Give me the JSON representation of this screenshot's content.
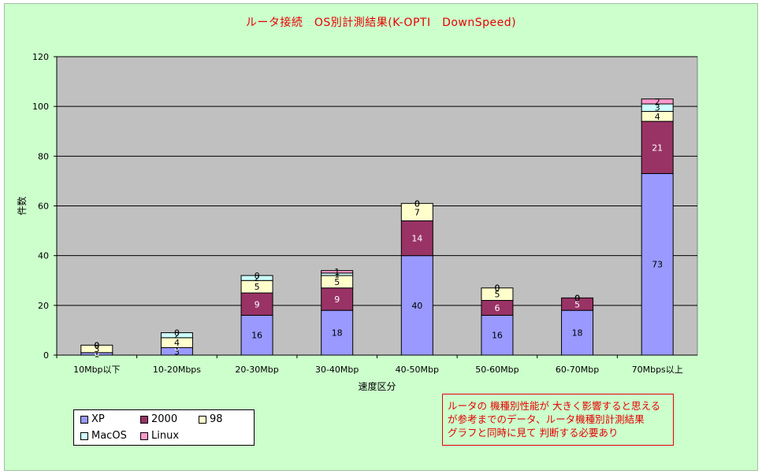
{
  "chart_data": {
    "type": "bar",
    "stacked": true,
    "title": "ルータ接続　OS別計測結果(K-OPTI　DownSpeed)",
    "xlabel": "速度区分",
    "ylabel": "件数",
    "ylim": [
      0,
      120
    ],
    "yticks": [
      0,
      20,
      40,
      60,
      80,
      100,
      120
    ],
    "grid": true,
    "legend_position": "bottom-left",
    "categories": [
      "10Mbp以下",
      "10-20Mbps",
      "20-30Mbp",
      "30-40Mbp",
      "40-50Mbp",
      "50-60Mbp",
      "60-70Mbp",
      "70Mbps以上"
    ],
    "series": [
      {
        "name": "XP",
        "color": "#9999ff",
        "values": [
          1,
          3,
          16,
          18,
          40,
          16,
          18,
          73
        ]
      },
      {
        "name": "2000",
        "color": "#993366",
        "values": [
          0,
          0,
          9,
          9,
          14,
          6,
          5,
          21
        ]
      },
      {
        "name": "98",
        "color": "#ffffcc",
        "values": [
          3,
          4,
          5,
          5,
          7,
          5,
          0,
          4
        ]
      },
      {
        "name": "MacOS",
        "color": "#ccffff",
        "values": [
          0,
          2,
          2,
          1,
          0,
          0,
          0,
          3
        ]
      },
      {
        "name": "Linux",
        "color": "#ff99cc",
        "values": [
          0,
          0,
          0,
          1,
          0,
          0,
          0,
          2
        ]
      }
    ]
  },
  "note_lines": [
    "ルータの 機種別性能が 大きく影響すると思える",
    "が参考までのデータ、ルータ機種別計測結果",
    "グラフと同時に見て 判断する必要あり"
  ],
  "colors": {
    "background": "#ccffcc",
    "plot": "#c0c0c0",
    "accent": "#e60000"
  }
}
